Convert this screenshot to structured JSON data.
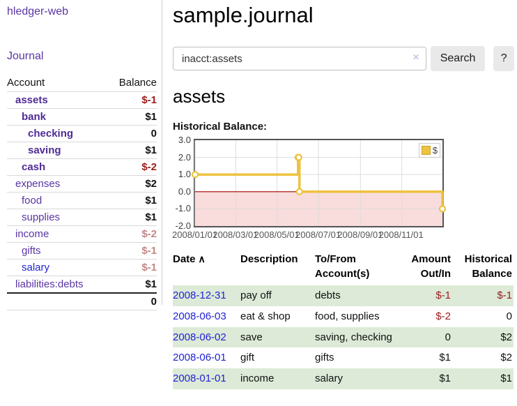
{
  "colors": {
    "link_purple": "#5a35a5",
    "link_purple_bold": "#4f2b96",
    "link_blue": "#2222d6",
    "negative_strong": "#9b1b1b",
    "negative_muted": "#c28787",
    "row_green": "#dcead7",
    "chart_gold": "#edc240",
    "chart_pink": "#f9dcdc",
    "zero_line": "#a00000"
  },
  "sidebar": {
    "app_title": "hledger-web",
    "journal_label": "Journal",
    "accounts": {
      "header": {
        "account": "Account",
        "balance": "Balance"
      },
      "rows": [
        {
          "name": "assets",
          "level": 1,
          "bold": true,
          "balance": "$-1",
          "neg": "strong"
        },
        {
          "name": "bank",
          "level": 2,
          "bold": true,
          "balance": "$1"
        },
        {
          "name": "checking",
          "level": 3,
          "bold": true,
          "balance": "0"
        },
        {
          "name": "saving",
          "level": 3,
          "bold": true,
          "balance": "$1"
        },
        {
          "name": "cash",
          "level": 2,
          "bold": true,
          "balance": "$-2",
          "neg": "strong"
        },
        {
          "name": "expenses",
          "level": 1,
          "bold": false,
          "balance": "$2"
        },
        {
          "name": "food",
          "level": 2,
          "bold": false,
          "balance": "$1"
        },
        {
          "name": "supplies",
          "level": 2,
          "bold": false,
          "balance": "$1"
        },
        {
          "name": "income",
          "level": 1,
          "bold": false,
          "balance": "$-2",
          "neg": "muted"
        },
        {
          "name": "gifts",
          "level": 2,
          "bold": false,
          "balance": "$-1",
          "neg": "muted"
        },
        {
          "name": "salary",
          "level": 2,
          "bold": false,
          "balance": "$-1",
          "neg": "muted",
          "blue": true
        },
        {
          "name": "liabilities:debts",
          "level": 1,
          "bold": false,
          "balance": "$1"
        }
      ],
      "total": "0"
    }
  },
  "header": {
    "title": "sample.journal"
  },
  "search": {
    "query": "inacct:assets",
    "clear_icon": "×",
    "search_label": "Search",
    "help_label": "?"
  },
  "account_page": {
    "title": "assets",
    "chart_label": "Historical Balance:"
  },
  "chart_data": {
    "type": "line",
    "step": true,
    "title": "Historical Balance",
    "xlim": [
      "2008-01-01",
      "2008-12-31"
    ],
    "ylim": [
      -2,
      3
    ],
    "yticks": [
      "3.0",
      "2.0",
      "1.0",
      "0.0",
      "-1.0",
      "-2.0"
    ],
    "ytick_values": [
      3,
      2,
      1,
      0,
      -1,
      -2
    ],
    "xticks": [
      "2008/01/01",
      "2008/03/01",
      "2008/05/01",
      "2008/07/01",
      "2008/09/01",
      "2008/11/01"
    ],
    "xtick_dates": [
      "2008-01-01",
      "2008-03-01",
      "2008-05-01",
      "2008-07-01",
      "2008-09-01",
      "2008-11-01"
    ],
    "legend": "$",
    "legend_position": "top-right",
    "grid": true,
    "series": [
      {
        "name": "$",
        "color": "#edc240",
        "points": [
          {
            "x": "2008-01-01",
            "y": 1
          },
          {
            "x": "2008-06-01",
            "y": 2
          },
          {
            "x": "2008-06-02",
            "y": 2
          },
          {
            "x": "2008-06-03",
            "y": 0
          },
          {
            "x": "2008-12-31",
            "y": -1
          }
        ]
      }
    ]
  },
  "register": {
    "sort_icon": "∧",
    "columns": [
      "Date",
      "Description",
      "To/From Account(s)",
      "Amount Out/In",
      "Historical Balance"
    ],
    "rows": [
      {
        "date": "2008-12-31",
        "description": "pay off",
        "accounts": "debts",
        "amount": "$-1",
        "amount_neg": true,
        "balance": "$-1",
        "balance_neg": true
      },
      {
        "date": "2008-06-03",
        "description": "eat & shop",
        "accounts": "food, supplies",
        "amount": "$-2",
        "amount_neg": true,
        "balance": "0",
        "balance_neg": false
      },
      {
        "date": "2008-06-02",
        "description": "save",
        "accounts": "saving, checking",
        "amount": "0",
        "amount_neg": false,
        "balance": "$2",
        "balance_neg": false
      },
      {
        "date": "2008-06-01",
        "description": "gift",
        "accounts": "gifts",
        "amount": "$1",
        "amount_neg": false,
        "balance": "$2",
        "balance_neg": false
      },
      {
        "date": "2008-01-01",
        "description": "income",
        "accounts": "salary",
        "amount": "$1",
        "amount_neg": false,
        "balance": "$1",
        "balance_neg": false
      }
    ]
  }
}
